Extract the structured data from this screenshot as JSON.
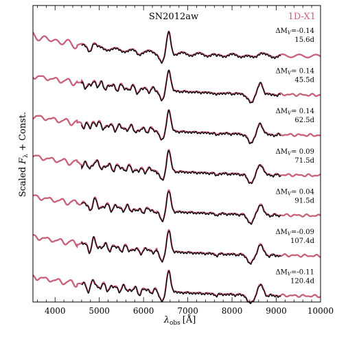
{
  "chart_data": {
    "type": "line",
    "title": "SN2012aw",
    "xlabel_main": "λ",
    "xlabel_sub": "obs",
    "xlabel_unit": "[Å]",
    "ylabel_pre": "Scaled ",
    "ylabel_var": "F",
    "ylabel_sub": "λ",
    "ylabel_post": " + Const.",
    "xlim": [
      3500,
      10000
    ],
    "xticks": [
      "4000",
      "5000",
      "6000",
      "7000",
      "8000",
      "9000",
      "10000"
    ],
    "x_minor_step": 200,
    "legend": [
      {
        "name": "SN2012aw",
        "color": "#000000",
        "position": "top-center"
      },
      {
        "name": "1D-X1",
        "color": "#c8607a",
        "position": "top-right"
      }
    ],
    "series": [
      {
        "epoch": "15.6d",
        "delta_label": "ΔM",
        "delta_sub": "V",
        "delta_value": "=-0.14"
      },
      {
        "epoch": "45.5d",
        "delta_label": "ΔM",
        "delta_sub": "V",
        "delta_value": "= 0.14"
      },
      {
        "epoch": "62.5d",
        "delta_label": "ΔM",
        "delta_sub": "V",
        "delta_value": "= 0.14"
      },
      {
        "epoch": "71.5d",
        "delta_label": "ΔM",
        "delta_sub": "V",
        "delta_value": "= 0.09"
      },
      {
        "epoch": "91.5d",
        "delta_label": "ΔM",
        "delta_sub": "V",
        "delta_value": "= 0.04"
      },
      {
        "epoch": "107.4d",
        "delta_label": "ΔM",
        "delta_sub": "V",
        "delta_value": "=-0.09"
      },
      {
        "epoch": "120.4d",
        "delta_label": "ΔM",
        "delta_sub": "V",
        "delta_value": "=-0.11"
      }
    ],
    "observed_range": [
      4600,
      9100
    ],
    "model_range": [
      3500,
      10000
    ],
    "colors": {
      "observed": "#000000",
      "model": "#c8607a"
    }
  }
}
